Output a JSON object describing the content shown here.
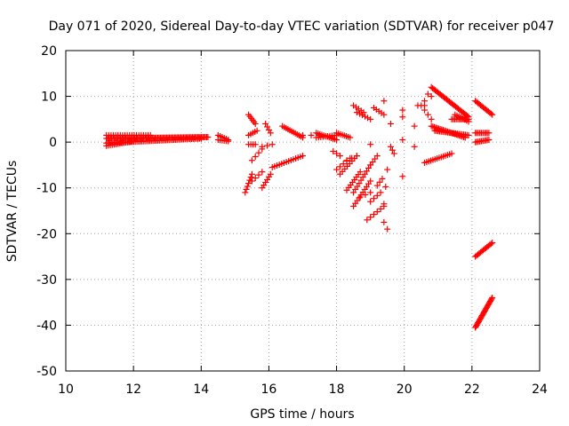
{
  "chart_data": {
    "type": "scatter",
    "title": "Day 071 of 2020, Sidereal Day-to-day VTEC variation (SDTVAR) for receiver p047",
    "xlabel": "GPS time / hours",
    "ylabel": "SDTVAR / TECUs",
    "xlim": [
      10,
      24
    ],
    "ylim": [
      -50,
      20
    ],
    "xticks": [
      "10",
      "12",
      "14",
      "16",
      "18",
      "20",
      "22",
      "24"
    ],
    "yticks": [
      "20",
      "10",
      "0",
      "-10",
      "-20",
      "-30",
      "-40",
      "-50"
    ],
    "grid": true,
    "marker": "+",
    "color": "#ff0000",
    "series": [
      {
        "name": "SDTVAR",
        "segments": [
          {
            "x": [
              11.2,
              14.2
            ],
            "y": [
              0.8,
              1.1
            ],
            "n": 80
          },
          {
            "x": [
              11.2,
              12.0
            ],
            "y": [
              -0.8,
              0.2
            ],
            "n": 15
          },
          {
            "x": [
              11.2,
              14.0
            ],
            "y": [
              -0.2,
              0.8
            ],
            "n": 60
          },
          {
            "x": [
              11.2,
              12.5
            ],
            "y": [
              1.5,
              1.5
            ],
            "n": 20
          },
          {
            "x": [
              14.5,
              14.8
            ],
            "y": [
              1.5,
              0.5
            ],
            "n": 6
          },
          {
            "x": [
              14.5,
              14.8
            ],
            "y": [
              0.5,
              0.2
            ],
            "n": 6
          },
          {
            "x": [
              15.4,
              15.6
            ],
            "y": [
              6.0,
              4.0
            ],
            "n": 6
          },
          {
            "x": [
              15.4,
              15.65
            ],
            "y": [
              1.5,
              2.5
            ],
            "n": 5
          },
          {
            "x": [
              15.4,
              15.6
            ],
            "y": [
              -0.5,
              -0.5
            ],
            "n": 4
          },
          {
            "x": [
              15.5,
              15.8
            ],
            "y": [
              -4.0,
              -1.5
            ],
            "n": 4
          },
          {
            "x": [
              15.3,
              15.5
            ],
            "y": [
              -11.0,
              -7.0
            ],
            "n": 7
          },
          {
            "x": [
              15.5,
              15.8
            ],
            "y": [
              -8.5,
              -6.5
            ],
            "n": 4
          },
          {
            "x": [
              15.8,
              16.05
            ],
            "y": [
              -10.0,
              -7.0
            ],
            "n": 6
          },
          {
            "x": [
              15.8,
              16.1
            ],
            "y": [
              -1.0,
              -0.5
            ],
            "n": 3
          },
          {
            "x": [
              15.9,
              16.05
            ],
            "y": [
              4.0,
              2.0
            ],
            "n": 4
          },
          {
            "x": [
              16.1,
              17.0
            ],
            "y": [
              -5.5,
              -3.0
            ],
            "n": 14
          },
          {
            "x": [
              16.4,
              17.0
            ],
            "y": [
              3.5,
              1.0
            ],
            "n": 12
          },
          {
            "x": [
              17.0,
              17.5
            ],
            "y": [
              1.5,
              1.5
            ],
            "n": 3
          },
          {
            "x": [
              17.4,
              18.0
            ],
            "y": [
              2.0,
              0.5
            ],
            "n": 12
          },
          {
            "x": [
              17.4,
              18.0
            ],
            "y": [
              1.0,
              1.5
            ],
            "n": 10
          },
          {
            "x": [
              18.0,
              18.4
            ],
            "y": [
              2.0,
              1.0
            ],
            "n": 8
          },
          {
            "x": [
              17.9,
              18.1
            ],
            "y": [
              -2.0,
              -3.0
            ],
            "n": 3
          },
          {
            "x": [
              18.0,
              18.4
            ],
            "y": [
              -6.0,
              -3.5
            ],
            "n": 5
          },
          {
            "x": [
              18.1,
              18.6
            ],
            "y": [
              -7.0,
              -3.0
            ],
            "n": 8
          },
          {
            "x": [
              18.3,
              18.6
            ],
            "y": [
              -4.0,
              -3.0
            ],
            "n": 3
          },
          {
            "x": [
              18.3,
              18.7
            ],
            "y": [
              -10.5,
              -6.5
            ],
            "n": 8
          },
          {
            "x": [
              18.5,
              19.0
            ],
            "y": [
              -14.0,
              -8.5
            ],
            "n": 10
          },
          {
            "x": [
              18.5,
              19.0
            ],
            "y": [
              -11.0,
              -5.0
            ],
            "n": 10
          },
          {
            "x": [
              18.5,
              18.8
            ],
            "y": [
              8.0,
              6.5
            ],
            "n": 5
          },
          {
            "x": [
              18.6,
              19.0
            ],
            "y": [
              6.5,
              5.0
            ],
            "n": 6
          },
          {
            "x": [
              18.7,
              19.0
            ],
            "y": [
              -12.0,
              -11.0
            ],
            "n": 3
          },
          {
            "x": [
              18.9,
              19.4
            ],
            "y": [
              -17.0,
              -14.0
            ],
            "n": 6
          },
          {
            "x": [
              19.0,
              19.3
            ],
            "y": [
              -13.0,
              -11.0
            ],
            "n": 4
          },
          {
            "x": [
              19.1,
              19.4
            ],
            "y": [
              7.5,
              6.0
            ],
            "n": 5
          },
          {
            "x": [
              19.0,
              19.2
            ],
            "y": [
              -5.0,
              -3.0
            ],
            "n": 4
          },
          {
            "x": [
              19.2,
              19.35
            ],
            "y": [
              -9.5,
              -8.0
            ],
            "n": 3
          },
          {
            "x": [
              19.4,
              19.5
            ],
            "y": [
              9.0,
              9.0
            ],
            "n": 1
          },
          {
            "x": [
              19.4,
              19.5
            ],
            "y": [
              -17.5,
              -19.0
            ],
            "n": 2
          },
          {
            "x": [
              19.4,
              19.5
            ],
            "y": [
              -13.5,
              -6.0
            ],
            "n": 3
          },
          {
            "x": [
              19.0,
              19.05
            ],
            "y": [
              -0.5,
              -0.5
            ],
            "n": 1
          },
          {
            "x": [
              19.6,
              19.7
            ],
            "y": [
              4.0,
              4.0
            ],
            "n": 1
          },
          {
            "x": [
              19.6,
              19.7
            ],
            "y": [
              -1.0,
              -2.5
            ],
            "n": 3
          },
          {
            "x": [
              19.95,
              20.0
            ],
            "y": [
              7.0,
              7.0
            ],
            "n": 1
          },
          {
            "x": [
              19.95,
              20.0
            ],
            "y": [
              5.5,
              5.5
            ],
            "n": 1
          },
          {
            "x": [
              19.95,
              20.0
            ],
            "y": [
              0.5,
              0.5
            ],
            "n": 1
          },
          {
            "x": [
              19.95,
              20.0
            ],
            "y": [
              -7.5,
              -7.5
            ],
            "n": 1
          },
          {
            "x": [
              20.3,
              20.35
            ],
            "y": [
              3.5,
              3.5
            ],
            "n": 1
          },
          {
            "x": [
              20.3,
              20.35
            ],
            "y": [
              -1.0,
              -1.0
            ],
            "n": 1
          },
          {
            "x": [
              20.4,
              20.6
            ],
            "y": [
              8.0,
              8.0
            ],
            "n": 3
          },
          {
            "x": [
              20.6,
              20.8
            ],
            "y": [
              7.0,
              5.0
            ],
            "n": 3
          },
          {
            "x": [
              20.6,
              20.65
            ],
            "y": [
              9.0,
              9.0
            ],
            "n": 1
          },
          {
            "x": [
              20.7,
              20.8
            ],
            "y": [
              10.5,
              10.0
            ],
            "n": 2
          },
          {
            "x": [
              20.8,
              21.9
            ],
            "y": [
              12.0,
              5.5
            ],
            "n": 30
          },
          {
            "x": [
              20.8,
              21.8
            ],
            "y": [
              3.5,
              1.0
            ],
            "n": 24
          },
          {
            "x": [
              20.9,
              21.9
            ],
            "y": [
              2.5,
              1.5
            ],
            "n": 22
          },
          {
            "x": [
              20.6,
              21.4
            ],
            "y": [
              -4.5,
              -2.5
            ],
            "n": 14
          },
          {
            "x": [
              21.4,
              21.9
            ],
            "y": [
              5.0,
              5.0
            ],
            "n": 12
          },
          {
            "x": [
              21.5,
              21.9
            ],
            "y": [
              6.0,
              4.5
            ],
            "n": 8
          },
          {
            "x": [
              22.1,
              22.6
            ],
            "y": [
              9.0,
              6.0
            ],
            "n": 14
          },
          {
            "x": [
              22.1,
              22.5
            ],
            "y": [
              2.0,
              2.0
            ],
            "n": 10
          },
          {
            "x": [
              22.1,
              22.5
            ],
            "y": [
              0.0,
              0.5
            ],
            "n": 10
          },
          {
            "x": [
              22.1,
              22.6
            ],
            "y": [
              -25.0,
              -22.0
            ],
            "n": 14
          },
          {
            "x": [
              22.1,
              22.6
            ],
            "y": [
              -40.5,
              -34.0
            ],
            "n": 26
          }
        ]
      }
    ]
  }
}
